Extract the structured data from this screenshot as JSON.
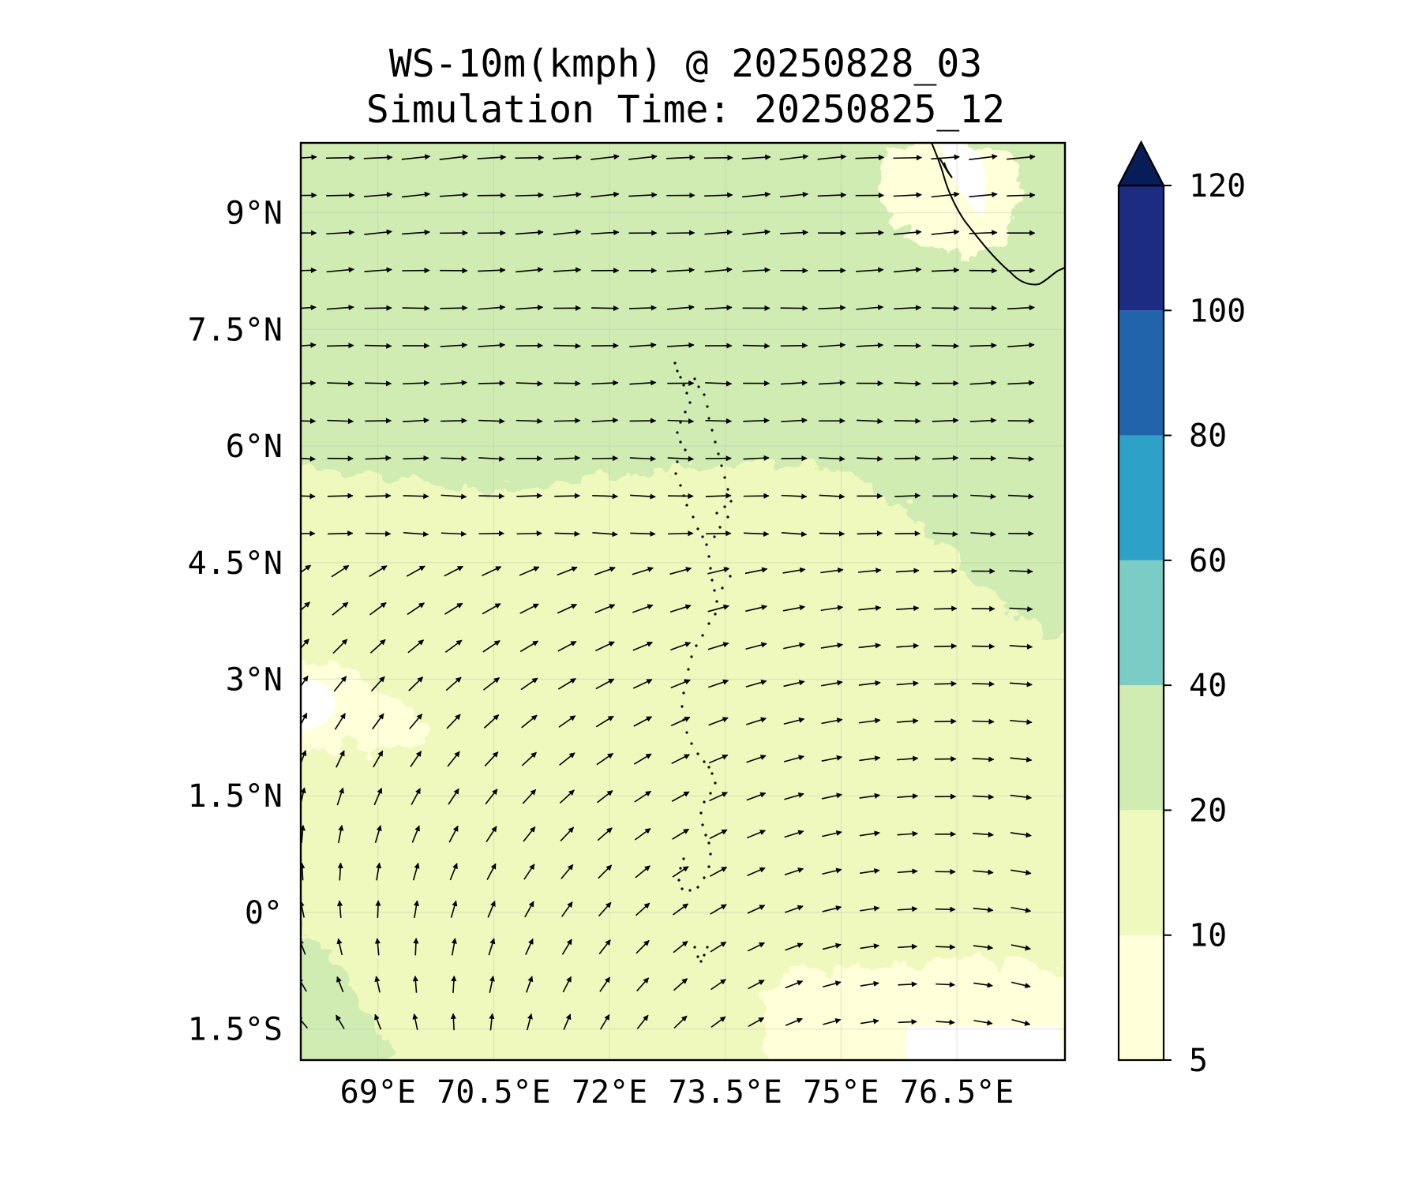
{
  "title": {
    "line1": "WS-10m(kmph) @ 20250828_03",
    "line2": "Simulation Time: 20250825_12"
  },
  "map": {
    "lat_ticks": [
      "9°N",
      "7.5°N",
      "6°N",
      "4.5°N",
      "3°N",
      "1.5°N",
      "0°",
      "1.5°S"
    ],
    "lon_ticks": [
      "69°E",
      "70.5°E",
      "72°E",
      "73.5°E",
      "75°E",
      "76.5°E"
    ],
    "lat_values": [
      9,
      7.5,
      6,
      4.5,
      3,
      1.5,
      0,
      -1.5
    ],
    "lon_values": [
      69,
      70.5,
      72,
      73.5,
      75,
      76.5
    ],
    "lat_range": [
      -1.9,
      9.9
    ],
    "lon_range": [
      68.0,
      77.9
    ],
    "grid": true,
    "field": "wind speed 10m with wind vectors"
  },
  "colorbar": {
    "ticks": [
      "5",
      "10",
      "20",
      "40",
      "60",
      "80",
      "100",
      "120"
    ],
    "levels": [
      5,
      10,
      20,
      40,
      60,
      80,
      100,
      120
    ],
    "colors": [
      "#ffffd9",
      "#eff9bd",
      "#d0ecb3",
      "#7bccc4",
      "#2ea1c8",
      "#2264ab",
      "#1d2c83",
      "#081d58"
    ],
    "extend": "max"
  }
}
